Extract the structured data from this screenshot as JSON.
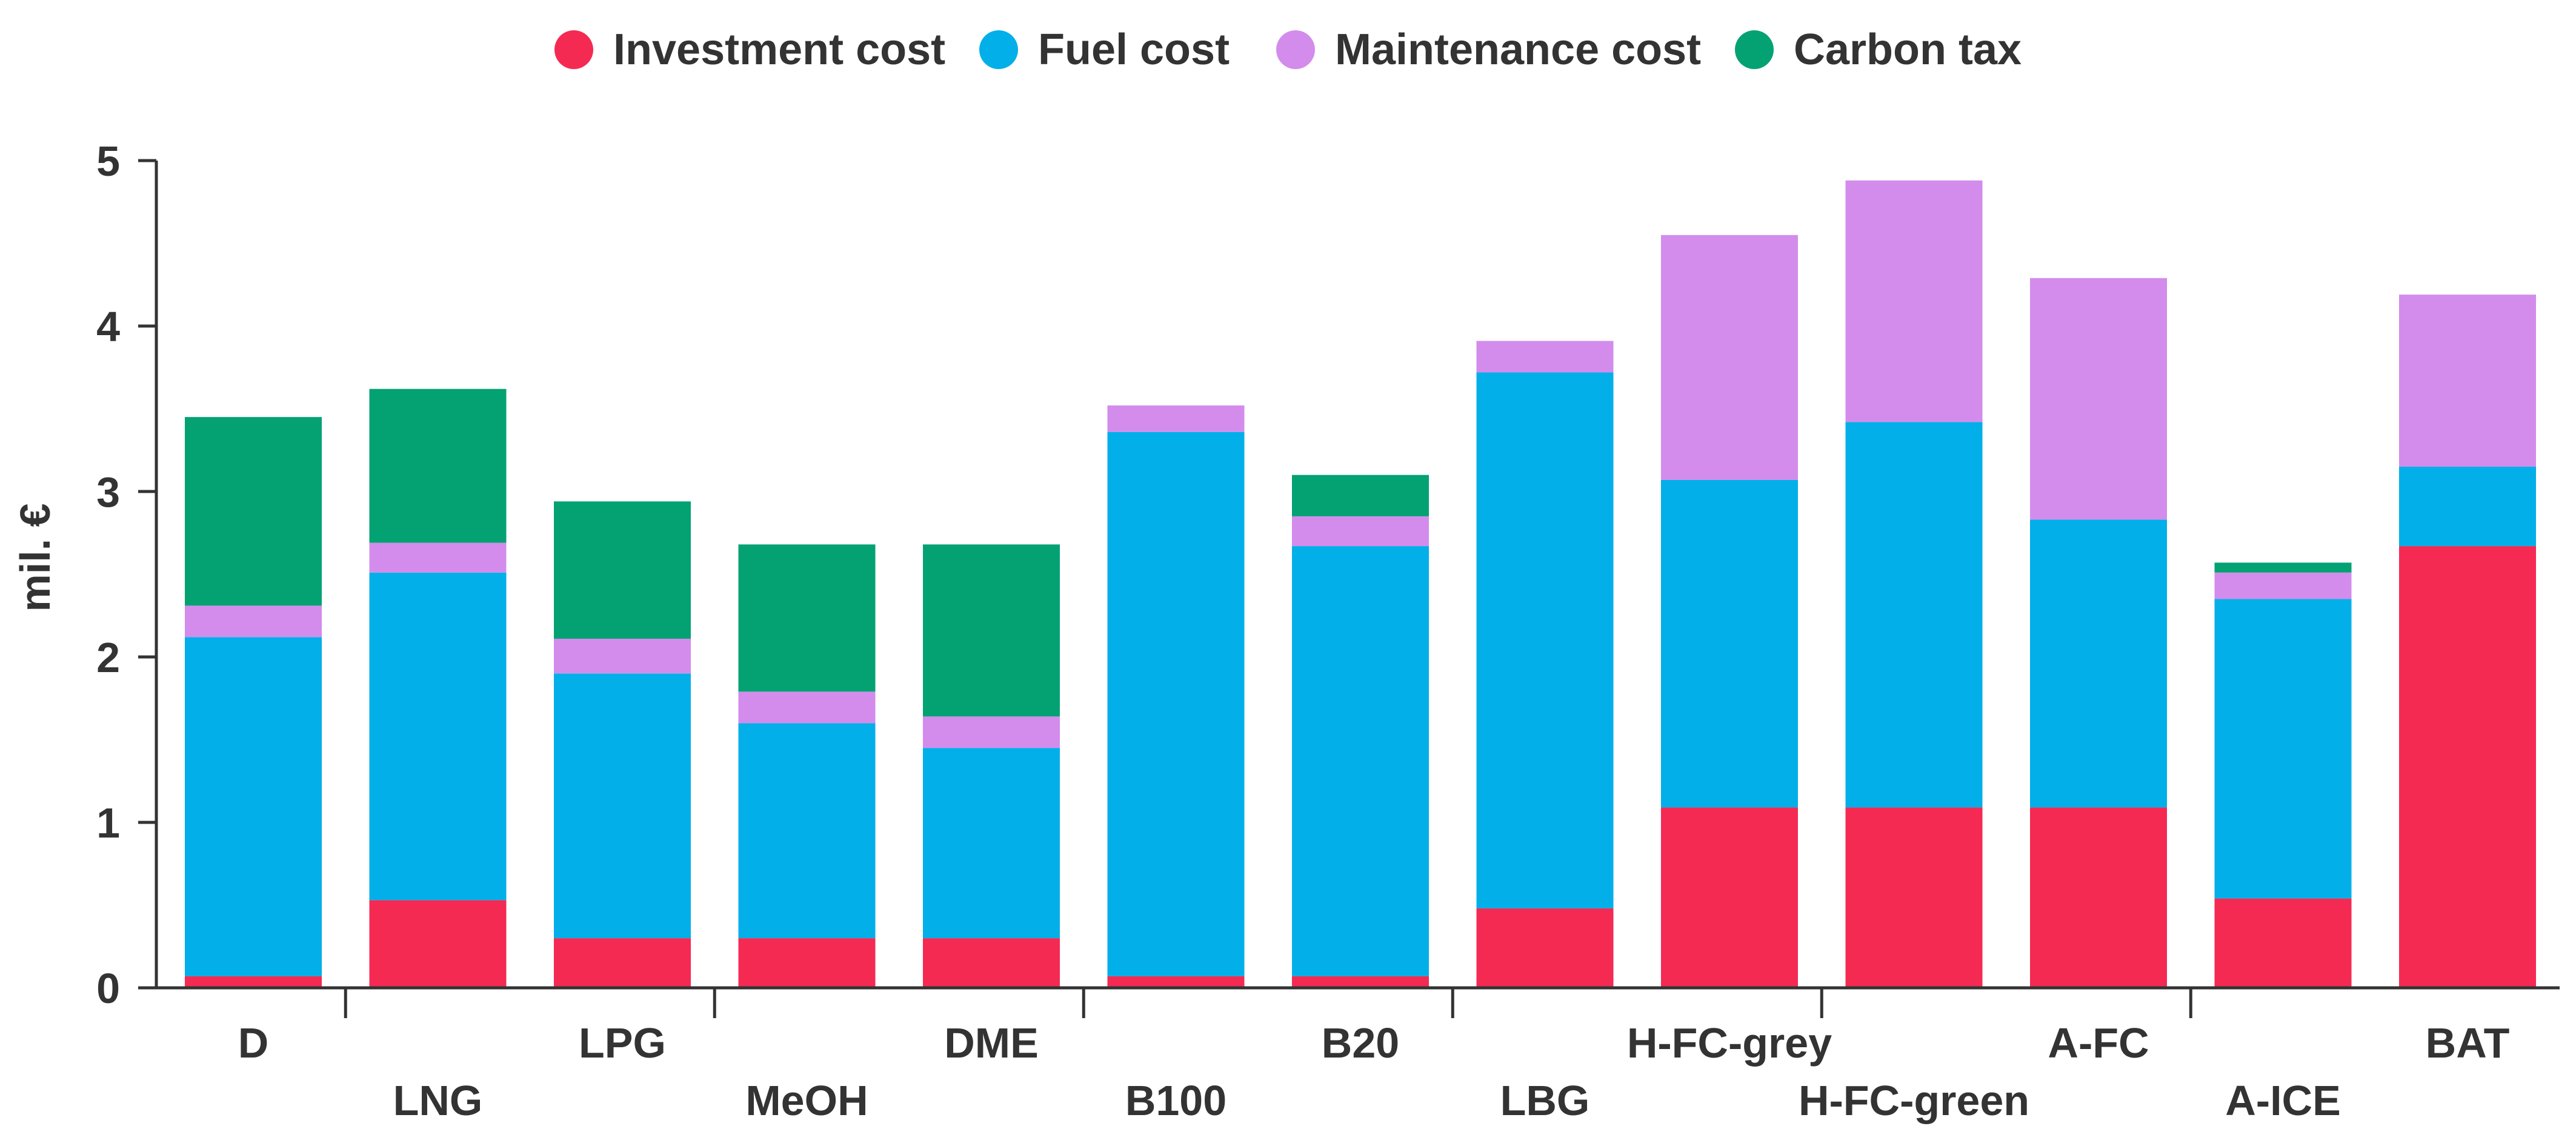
{
  "colors": {
    "investment": "#f42a53",
    "fuel": "#03afe9",
    "maintenance": "#d38cec",
    "carbon": "#04a273",
    "axis": "#333333",
    "text": "#333333"
  },
  "chart_data": {
    "type": "bar",
    "stacked": true,
    "title": "",
    "xlabel": "",
    "ylabel": "mil. €",
    "ylim": [
      0,
      5
    ],
    "yticks": [
      "0",
      "1",
      "2",
      "3",
      "4",
      "5"
    ],
    "legend_position": "top-center",
    "categories": [
      "D",
      "LNG",
      "LPG",
      "MeOH",
      "DME",
      "B100",
      "B20",
      "LBG",
      "H-FC-grey",
      "H-FC-green",
      "A-FC",
      "A-ICE",
      "BAT"
    ],
    "series": [
      {
        "name": "Investment cost",
        "key": "investment",
        "values": [
          0.07,
          0.53,
          0.3,
          0.3,
          0.3,
          0.07,
          0.07,
          0.48,
          1.09,
          1.09,
          1.09,
          0.54,
          2.67
        ]
      },
      {
        "name": "Fuel cost",
        "key": "fuel",
        "values": [
          2.05,
          1.98,
          1.6,
          1.3,
          1.15,
          3.29,
          2.6,
          3.24,
          1.98,
          2.33,
          1.74,
          1.81,
          0.48
        ]
      },
      {
        "name": "Maintenance cost",
        "key": "maintenance",
        "values": [
          0.19,
          0.18,
          0.21,
          0.19,
          0.19,
          0.16,
          0.18,
          0.19,
          1.48,
          1.46,
          1.46,
          0.16,
          1.04
        ]
      },
      {
        "name": "Carbon tax",
        "key": "carbon",
        "values": [
          1.14,
          0.93,
          0.83,
          0.89,
          1.04,
          0,
          0.25,
          0,
          0,
          0,
          0,
          0.06,
          0
        ]
      }
    ]
  }
}
